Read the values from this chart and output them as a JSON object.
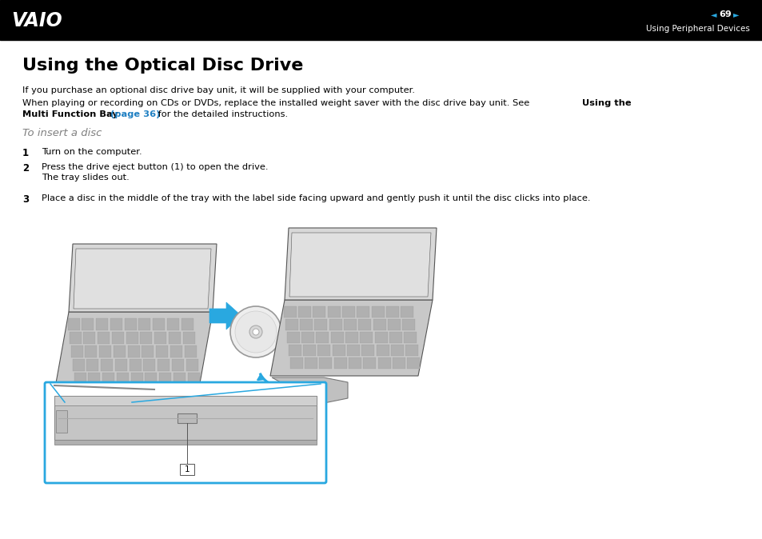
{
  "bg_color": "#ffffff",
  "header_bg": "#000000",
  "link_color": "#1e7fc2",
  "body_color": "#000000",
  "arrow_color": "#29a8e0",
  "box_border_color": "#29a8e0",
  "subheading_color": "#808080",
  "header_right_text": "Using Peripheral Devices",
  "page_number": "69",
  "title": "Using the Optical Disc Drive",
  "para1": "If you purchase an optional disc drive bay unit, it will be supplied with your computer.",
  "para2a": "When playing or recording on CDs or DVDs, replace the installed weight saver with the disc drive bay unit. See ",
  "para2b_bold": "Using the",
  "para2c_bold": "Multi Function Bay ",
  "para2d_link": "(page 36)",
  "para2e": " for the detailed instructions.",
  "subheading": "To insert a disc",
  "step1": "Turn on the computer.",
  "step2a": "Press the drive eject button (1) to open the drive.",
  "step2b": "The tray slides out.",
  "step3": "Place a disc in the middle of the tray with the label side facing upward and gently push it until the disc clicks into place."
}
